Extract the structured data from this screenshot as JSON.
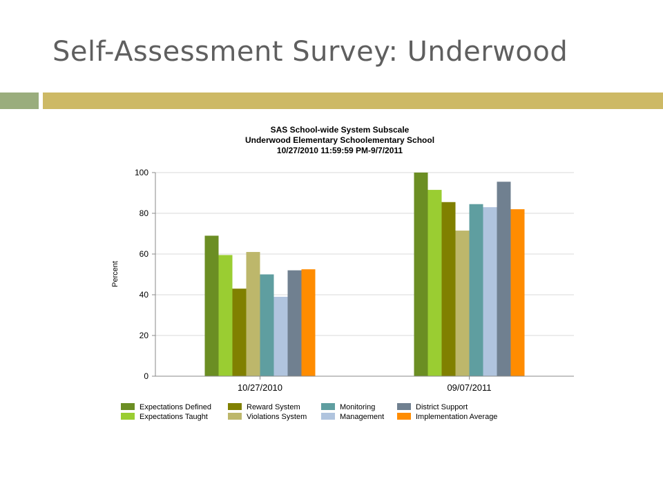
{
  "slide": {
    "title": "Self-Assessment Survey: Underwood"
  },
  "colors": {
    "accent_bar_left": "#9aad7d",
    "accent_bar_right": "#cdb965"
  },
  "chart_data": {
    "type": "bar",
    "title": "SAS School-wide System Subscale",
    "subtitle_lines": [
      "Underwood Elementary Schoolementary School",
      "10/27/2010 11:59:59 PM-9/7/2011"
    ],
    "xlabel": "",
    "ylabel": "Percent",
    "ylim": [
      0,
      100
    ],
    "yticks": [
      0,
      20,
      40,
      60,
      80,
      100
    ],
    "grid": true,
    "legend_position": "bottom",
    "categories": [
      "10/27/2010",
      "09/07/2011"
    ],
    "series": [
      {
        "name": "Expectations Defined",
        "color": "#6b8e23",
        "values": [
          69,
          100
        ]
      },
      {
        "name": "Expectations Taught",
        "color": "#9acd32",
        "values": [
          59.5,
          91.5
        ]
      },
      {
        "name": "Reward System",
        "color": "#808000",
        "values": [
          43,
          85.5
        ]
      },
      {
        "name": "Violations System",
        "color": "#bdb76b",
        "values": [
          61,
          71.5
        ]
      },
      {
        "name": "Monitoring",
        "color": "#5f9ea0",
        "values": [
          50,
          84.5
        ]
      },
      {
        "name": "Management",
        "color": "#b0c4de",
        "values": [
          39,
          83
        ]
      },
      {
        "name": "District Support",
        "color": "#708090",
        "values": [
          52,
          95.5
        ]
      },
      {
        "name": "Implementation Average",
        "color": "#ff8c00",
        "values": [
          52.5,
          82
        ]
      }
    ]
  }
}
